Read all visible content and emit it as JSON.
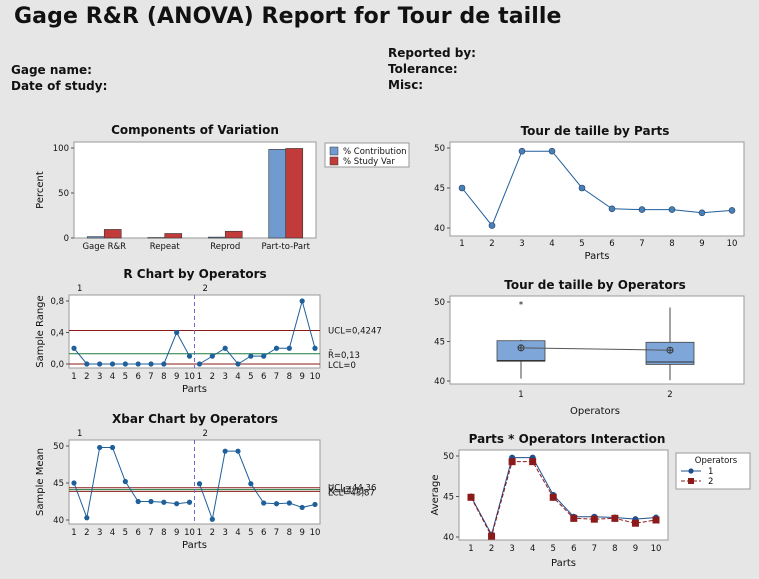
{
  "report": {
    "title": "Gage R&R (ANOVA) Report for Tour de taille",
    "left_fields": [
      "Gage name:",
      "Date of study:"
    ],
    "right_fields": [
      "Reported by:",
      "Tolerance:",
      "Misc:"
    ]
  },
  "chart_data": [
    {
      "id": "components",
      "type": "bar",
      "title": "Components of Variation",
      "ylabel": "Percent",
      "xlabel": "",
      "ylim": [
        0,
        100
      ],
      "yticks": [
        0,
        50,
        100
      ],
      "categories": [
        "Gage R&R",
        "Repeat",
        "Reprod",
        "Part-to-Part"
      ],
      "series": [
        {
          "name": "% Contribution",
          "color": "#6f9bd1",
          "values": [
            1.5,
            0.5,
            1.0,
            98.5
          ]
        },
        {
          "name": "% Study Var",
          "color": "#c23b3b",
          "values": [
            9.5,
            5.0,
            7.5,
            99.5
          ]
        }
      ],
      "legend": "right"
    },
    {
      "id": "r_chart",
      "type": "line",
      "title": "R Chart by Operators",
      "xlabel": "Parts",
      "ylabel": "Sample Range",
      "ylim": [
        0,
        0.8
      ],
      "yticks": [
        "0,0",
        "0,4",
        "0,8"
      ],
      "ytick_values": [
        0,
        0.4,
        0.8
      ],
      "panels": [
        "1",
        "2"
      ],
      "x": [
        1,
        2,
        3,
        4,
        5,
        6,
        7,
        8,
        9,
        10
      ],
      "series": [
        {
          "name": "1",
          "values": [
            0.2,
            0.0,
            0.0,
            0.0,
            0.0,
            0.0,
            0.0,
            0.0,
            0.4,
            0.1
          ]
        },
        {
          "name": "2",
          "values": [
            0.0,
            0.1,
            0.2,
            0.0,
            0.1,
            0.1,
            0.2,
            0.2,
            0.8,
            0.2
          ]
        }
      ],
      "control_lines": {
        "ucl": 0.4247,
        "center": 0.13,
        "lcl": 0
      },
      "control_labels": {
        "ucl": "UCL=0,4247",
        "center": "R̄=0,13",
        "lcl": "LCL=0"
      }
    },
    {
      "id": "xbar_chart",
      "type": "line",
      "title": "Xbar Chart by Operators",
      "xlabel": "Parts",
      "ylabel": "Sample Mean",
      "ylim": [
        40,
        50
      ],
      "yticks": [
        "40",
        "45",
        "50"
      ],
      "ytick_values": [
        40,
        45,
        50
      ],
      "panels": [
        "1",
        "2"
      ],
      "x": [
        1,
        2,
        3,
        4,
        5,
        6,
        7,
        8,
        9,
        10
      ],
      "series": [
        {
          "name": "1",
          "values": [
            45.0,
            40.3,
            49.8,
            49.8,
            45.2,
            42.5,
            42.5,
            42.4,
            42.2,
            42.4
          ]
        },
        {
          "name": "2",
          "values": [
            44.9,
            40.1,
            49.3,
            49.3,
            44.9,
            42.3,
            42.2,
            42.3,
            41.7,
            42.1
          ]
        }
      ],
      "control_lines": {
        "ucl": 44.36,
        "center": 44.11,
        "lcl": 43.87
      },
      "control_labels": {
        "ucl": "UCL=44,36",
        "center": "X̄=44,11",
        "lcl": "LCL=43,87"
      }
    },
    {
      "id": "by_parts",
      "type": "scatter",
      "title": "Tour de taille by Parts",
      "xlabel": "Parts",
      "ylabel": "",
      "ylim": [
        40,
        50
      ],
      "yticks": [
        40,
        45,
        50
      ],
      "x": [
        1,
        2,
        3,
        4,
        5,
        6,
        7,
        8,
        9,
        10
      ],
      "mean_values": [
        45.0,
        40.3,
        49.6,
        49.6,
        45.0,
        42.4,
        42.3,
        42.3,
        41.9,
        42.2
      ]
    },
    {
      "id": "by_operators",
      "type": "box",
      "title": "Tour de taille by Operators",
      "xlabel": "Operators",
      "ylabel": "",
      "ylim": [
        40,
        50
      ],
      "yticks": [
        40,
        45,
        50
      ],
      "categories": [
        "1",
        "2"
      ],
      "boxes": [
        {
          "whisker_low": 40.3,
          "q1": 42.5,
          "median": 42.6,
          "q3": 45.1,
          "whisker_high": 45.2,
          "mean": 44.2,
          "outliers": [
            49.8
          ]
        },
        {
          "whisker_low": 40.1,
          "q1": 42.1,
          "median": 42.4,
          "q3": 44.9,
          "whisker_high": 49.3,
          "mean": 43.9,
          "outliers": []
        }
      ]
    },
    {
      "id": "interaction",
      "type": "line",
      "title": "Parts * Operators Interaction",
      "xlabel": "Parts",
      "ylabel": "Average",
      "ylim": [
        40,
        50
      ],
      "yticks": [
        40,
        45,
        50
      ],
      "x": [
        1,
        2,
        3,
        4,
        5,
        6,
        7,
        8,
        9,
        10
      ],
      "legend_title": "Operators",
      "series": [
        {
          "name": "1",
          "color": "#1f4e8c",
          "marker": "circle",
          "values": [
            45.0,
            40.3,
            49.8,
            49.8,
            45.2,
            42.5,
            42.5,
            42.4,
            42.2,
            42.4
          ]
        },
        {
          "name": "2",
          "color": "#8b1a1a",
          "marker": "square",
          "values": [
            44.9,
            40.1,
            49.3,
            49.3,
            44.9,
            42.3,
            42.2,
            42.3,
            41.7,
            42.1
          ]
        }
      ]
    }
  ]
}
